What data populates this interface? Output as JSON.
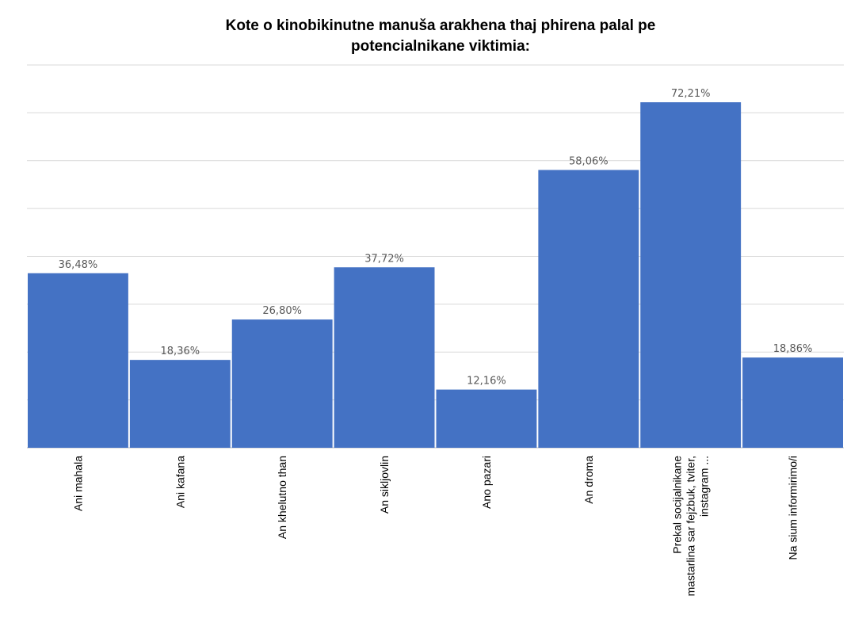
{
  "chart_data": {
    "type": "bar",
    "title_lines": [
      "Kote o kinobikinutne manuša arakhena thaj phirena palal pe",
      "potencialnikane viktimia:"
    ],
    "categories": [
      [
        "Ani mahala"
      ],
      [
        "Ani kafana"
      ],
      [
        "An khelutno than"
      ],
      [
        "An sikljovlin"
      ],
      [
        "Ano pazari"
      ],
      [
        "An droma"
      ],
      [
        "Prekal socijalnikane",
        "mastarlina sar fejzbuk, tviter,",
        "instagram ..."
      ],
      [
        "Na sium informirimo/i"
      ]
    ],
    "values": [
      36.48,
      18.36,
      26.8,
      37.72,
      12.16,
      58.06,
      72.21,
      18.86
    ],
    "data_labels": [
      "36,48%",
      "18,36%",
      "26,80%",
      "37,72%",
      "12,16%",
      "58,06%",
      "72,21%",
      "18,86%"
    ],
    "ylim": [
      0,
      80
    ],
    "grid": true,
    "bar_color": "#4472c4",
    "legend": "none"
  }
}
